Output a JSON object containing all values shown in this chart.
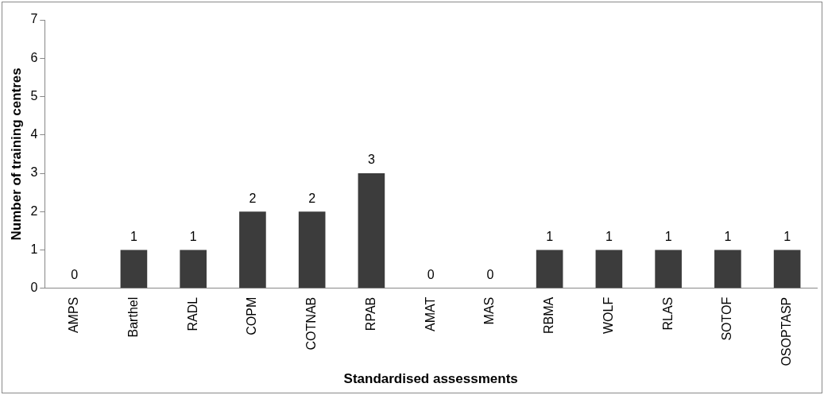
{
  "chart_data": {
    "type": "bar",
    "categories": [
      "AMPS",
      "Barthel",
      "RADL",
      "COPM",
      "COTNAB",
      "RPAB",
      "AMAT",
      "MAS",
      "RBMA",
      "WOLF",
      "RLAS",
      "SOTOF",
      "OSOPTASP"
    ],
    "values": [
      0,
      1,
      1,
      2,
      2,
      3,
      0,
      0,
      1,
      1,
      1,
      1,
      1
    ],
    "color": "#3c3c3c",
    "xlabel": "Standardised assessments",
    "ylabel": "Number of training centres",
    "ylim": [
      0,
      7
    ],
    "yticks": [
      0,
      1,
      2,
      3,
      4,
      5,
      6,
      7
    ],
    "grid": false,
    "legend": false,
    "data_labels": true
  }
}
